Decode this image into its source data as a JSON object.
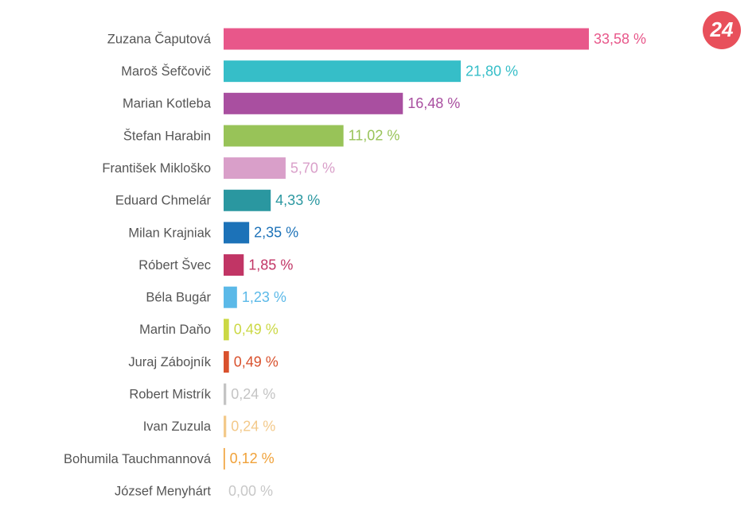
{
  "chart_data": {
    "type": "bar",
    "orientation": "horizontal",
    "categories": [
      "Zuzana Čaputová",
      "Maroš Šefčovič",
      "Marian Kotleba",
      "Štefan Harabin",
      "František Mikloško",
      "Eduard Chmelár",
      "Milan Krajniak",
      "Róbert Švec",
      "Béla Bugár",
      "Martin Daňo",
      "Juraj Zábojník",
      "Robert Mistrík",
      "Ivan Zuzula",
      "Bohumila Tauchmannová",
      "József Menyhárt"
    ],
    "values": [
      33.58,
      21.8,
      16.48,
      11.02,
      5.7,
      4.33,
      2.35,
      1.85,
      1.23,
      0.49,
      0.49,
      0.24,
      0.24,
      0.12,
      0.0
    ],
    "value_labels": [
      "33,58 %",
      "21,80 %",
      "16,48 %",
      "11,02 %",
      "5,70 %",
      "4,33 %",
      "2,35 %",
      "1,85 %",
      "1,23 %",
      "0,49 %",
      "0,49 %",
      "0,24 %",
      "0,24 %",
      "0,12 %",
      "0,00 %"
    ],
    "colors": [
      "#e8578a",
      "#36bec8",
      "#a94fa0",
      "#98c358",
      "#d99fc9",
      "#2a97a0",
      "#1c72b8",
      "#c13565",
      "#5bb9e8",
      "#cbd844",
      "#d9512d",
      "#c4c4c4",
      "#f3c98a",
      "#f0a138",
      "#c8c8c8"
    ]
  },
  "logo": "24"
}
